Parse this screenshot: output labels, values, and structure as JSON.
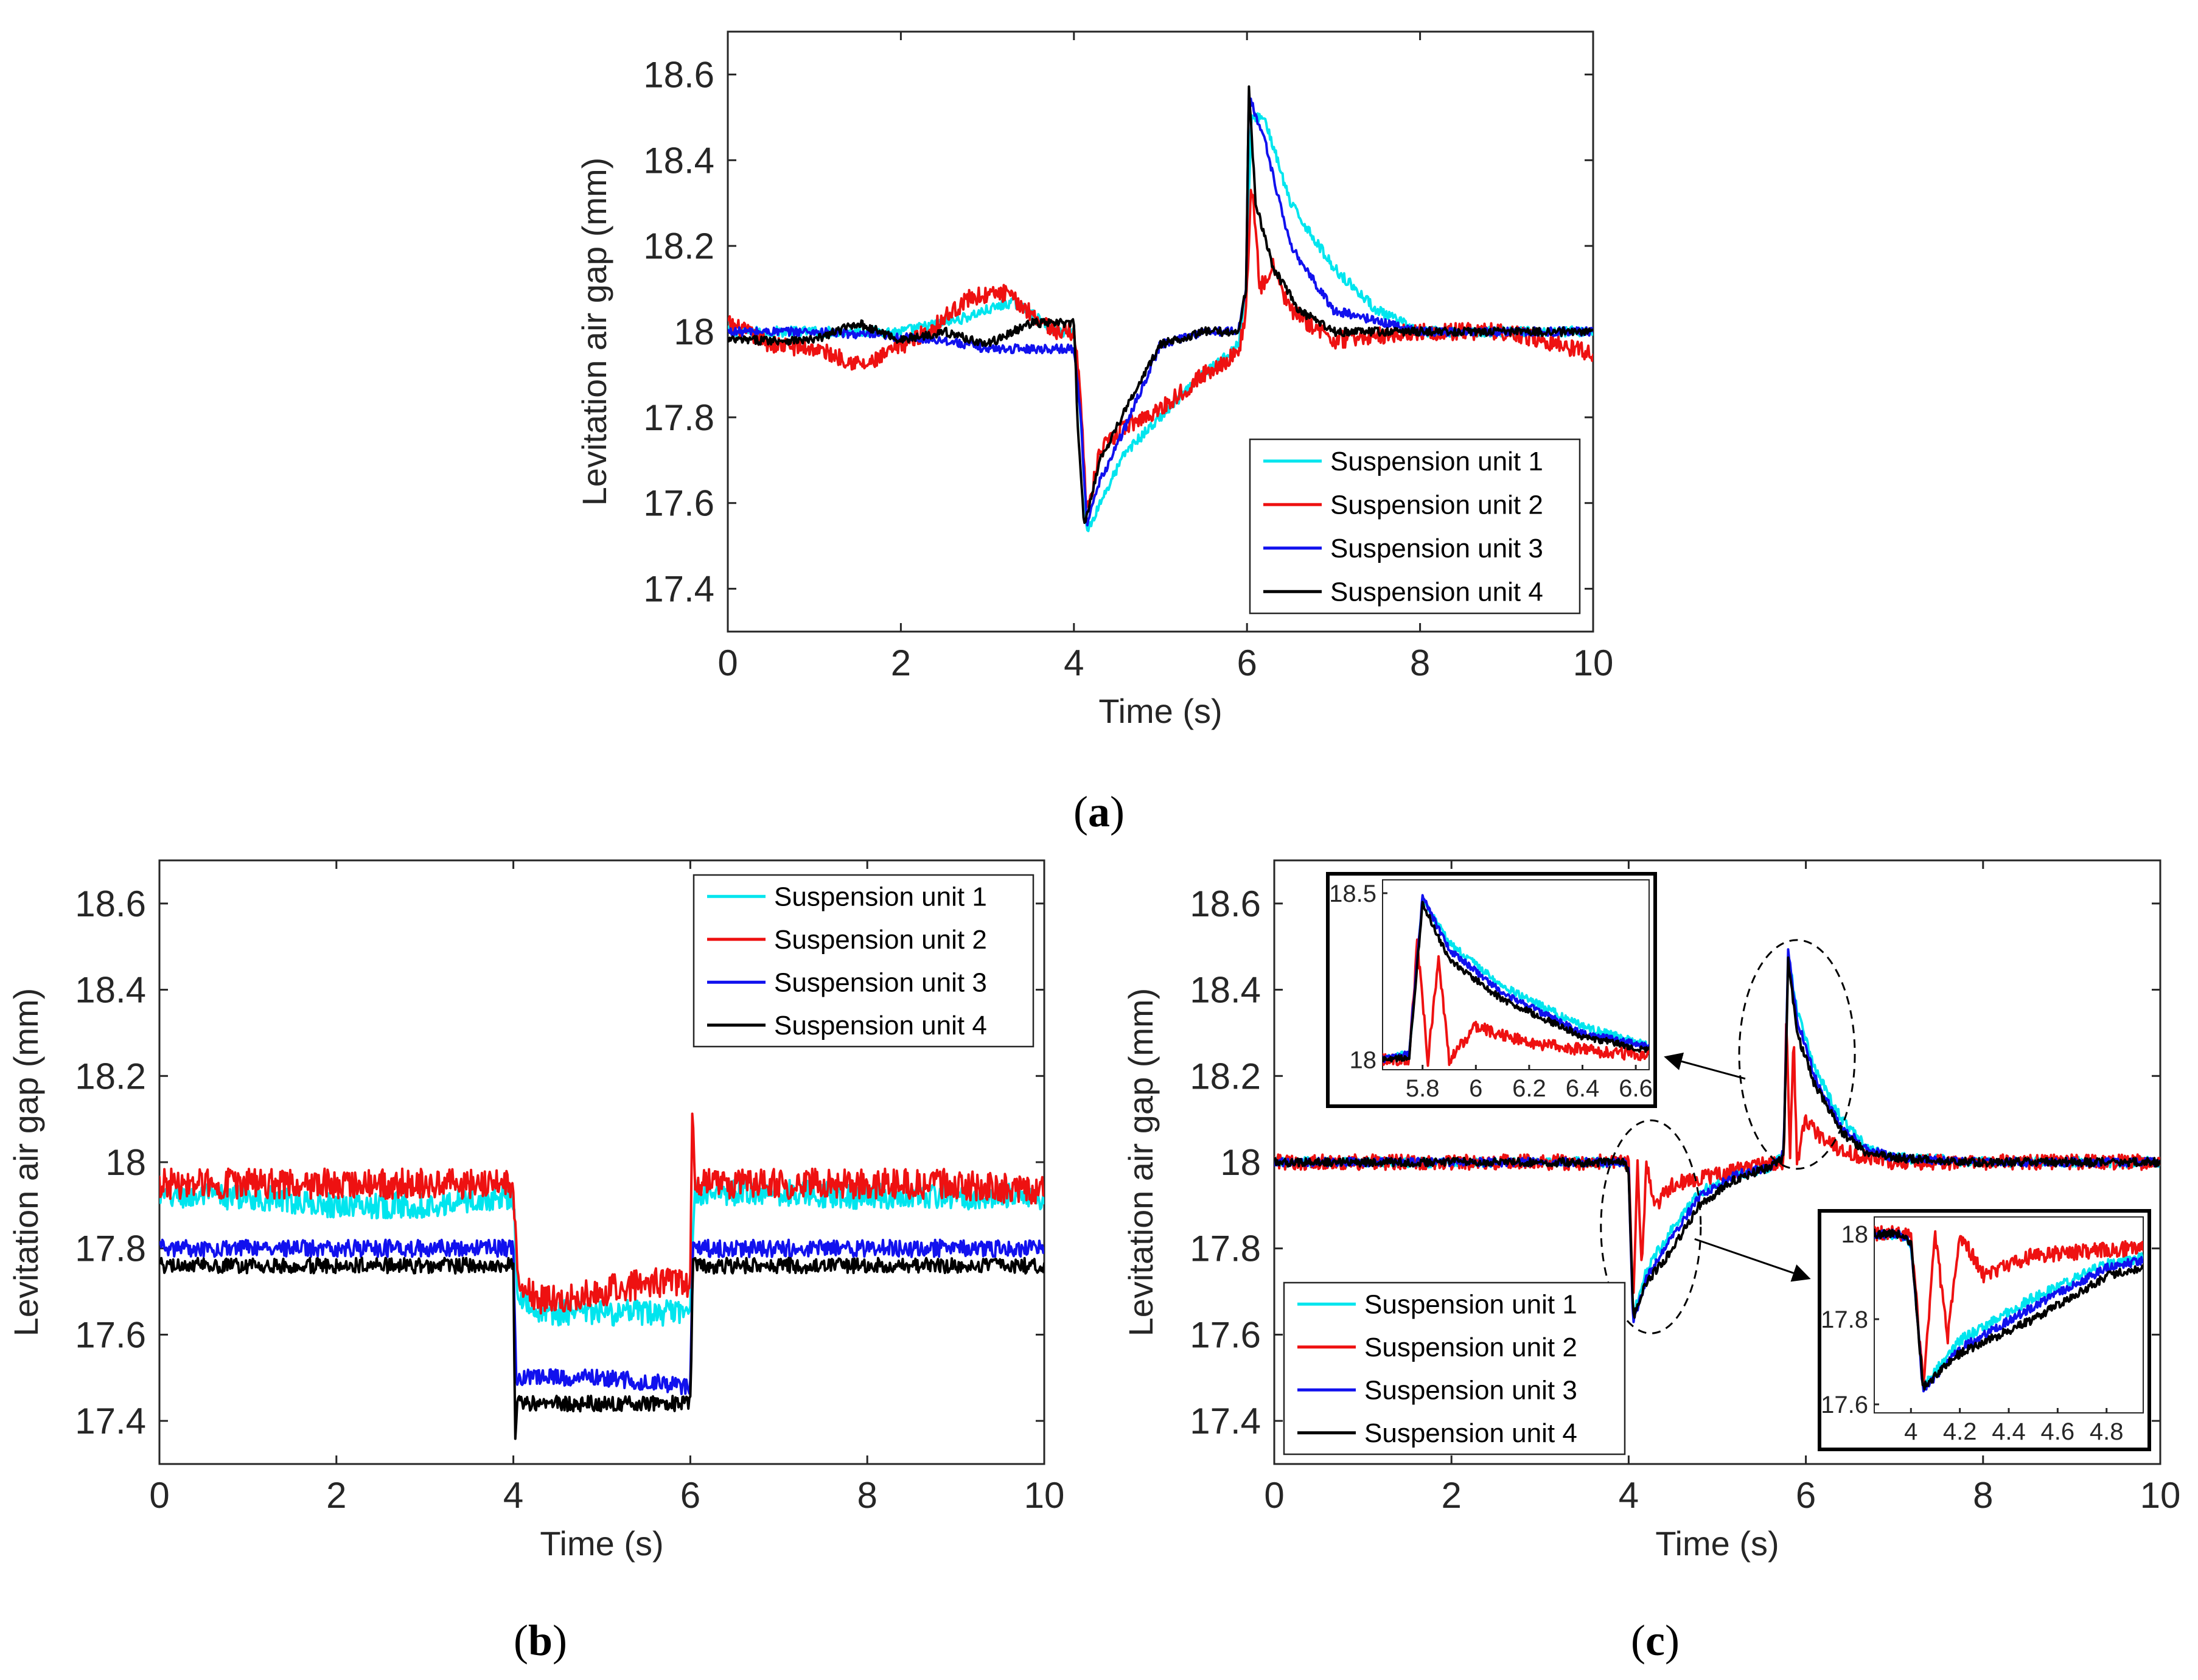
{
  "figure": {
    "panel_labels": [
      "a",
      "b",
      "c"
    ]
  },
  "colors": {
    "unit1": "#00e5ee",
    "unit2": "#ee1111",
    "unit3": "#1111ee",
    "unit4": "#000000"
  },
  "chart_data": [
    {
      "id": "a",
      "type": "line",
      "xlabel": "Time (s)",
      "ylabel": "Levitation air gap (mm)",
      "xlim": [
        0,
        10
      ],
      "ylim": [
        17.3,
        18.7
      ],
      "xticks": [
        0,
        2,
        4,
        6,
        8,
        10
      ],
      "xtick_labels": [
        "0",
        "2",
        "4",
        "6",
        "8",
        "10"
      ],
      "yticks": [
        17.4,
        17.6,
        17.8,
        18,
        18.2,
        18.4,
        18.6
      ],
      "ytick_labels": [
        "17.4",
        "17.6",
        "17.8",
        "18",
        "18.2",
        "18.4",
        "18.6"
      ],
      "legend_position": "bottom-right",
      "series": [
        {
          "name": "Suspension unit 1",
          "color_key": "unit1",
          "x": [
            0,
            1,
            2,
            2.7,
            3.3,
            3.8,
            4.0,
            4.08,
            4.15,
            4.3,
            4.6,
            5.0,
            5.5,
            5.9,
            5.99,
            6.05,
            6.2,
            6.5,
            7.0,
            7.5,
            8.0,
            9.0,
            10.0
          ],
          "values": [
            18.0,
            18.0,
            18.0,
            18.03,
            18.07,
            18.0,
            18.0,
            17.8,
            17.53,
            17.6,
            17.72,
            17.8,
            17.9,
            17.97,
            18.1,
            18.5,
            18.5,
            18.3,
            18.15,
            18.05,
            18.0,
            18.0,
            18.0
          ],
          "noise": 0.012
        },
        {
          "name": "Suspension unit 2",
          "color_key": "unit2",
          "x": [
            0,
            0.5,
            1.0,
            1.6,
            2.3,
            2.8,
            3.2,
            3.6,
            3.8,
            4.0,
            4.08,
            4.15,
            4.3,
            4.6,
            5.0,
            5.5,
            5.9,
            5.99,
            6.05,
            6.15,
            6.3,
            6.5,
            7.0,
            8.0,
            9.0,
            10.0
          ],
          "values": [
            18.02,
            17.97,
            17.96,
            17.92,
            18.0,
            18.08,
            18.09,
            18.03,
            18.0,
            18.0,
            17.85,
            17.57,
            17.72,
            17.78,
            17.82,
            17.9,
            17.95,
            18.05,
            18.35,
            18.1,
            18.15,
            18.05,
            17.98,
            18.0,
            18.0,
            17.95
          ],
          "noise": 0.02
        },
        {
          "name": "Suspension unit 3",
          "color_key": "unit3",
          "x": [
            0,
            1,
            2.5,
            3.0,
            3.8,
            4.0,
            4.08,
            4.15,
            4.3,
            4.6,
            5.0,
            5.5,
            5.9,
            5.99,
            6.02,
            6.2,
            6.5,
            7.0,
            8.0,
            9.0,
            10.0
          ],
          "values": [
            18.0,
            18.0,
            17.98,
            17.96,
            17.96,
            17.96,
            17.8,
            17.55,
            17.65,
            17.78,
            17.97,
            18.0,
            18.0,
            18.1,
            18.55,
            18.45,
            18.2,
            18.05,
            18.0,
            18.0,
            18.0
          ],
          "noise": 0.01
        },
        {
          "name": "Suspension unit 4",
          "color_key": "unit4",
          "x": [
            0,
            1,
            1.5,
            2.0,
            2.5,
            3.0,
            3.5,
            4.0,
            4.05,
            4.12,
            4.3,
            4.6,
            5.0,
            5.5,
            5.9,
            5.99,
            6.02,
            6.1,
            6.3,
            6.6,
            7.0,
            8.0,
            9.0,
            10.0
          ],
          "values": [
            17.98,
            17.98,
            18.02,
            17.98,
            18.0,
            17.97,
            18.02,
            18.02,
            17.75,
            17.55,
            17.7,
            17.82,
            17.97,
            18.0,
            18.0,
            18.1,
            18.57,
            18.3,
            18.15,
            18.05,
            18.0,
            18.0,
            18.0,
            18.0
          ],
          "noise": 0.01
        }
      ]
    },
    {
      "id": "b",
      "type": "line",
      "xlabel": "Time (s)",
      "ylabel": "Levitation air gap (mm)",
      "xlim": [
        0,
        10
      ],
      "ylim": [
        17.3,
        18.7
      ],
      "xticks": [
        0,
        2,
        4,
        6,
        8,
        10
      ],
      "xtick_labels": [
        "0",
        "2",
        "4",
        "6",
        "8",
        "10"
      ],
      "yticks": [
        17.4,
        17.6,
        17.8,
        18,
        18.2,
        18.4,
        18.6
      ],
      "ytick_labels": [
        "17.4",
        "17.6",
        "17.8",
        "18",
        "18.2",
        "18.4",
        "18.6"
      ],
      "legend_position": "top-right",
      "series": [
        {
          "name": "Suspension unit 1",
          "color_key": "unit1",
          "x": [
            0,
            1,
            2,
            3,
            4.0,
            4.05,
            4.3,
            5.0,
            5.5,
            6.0,
            6.05,
            7.0,
            8.0,
            9.0,
            10.0
          ],
          "values": [
            17.92,
            17.92,
            17.9,
            17.9,
            17.92,
            17.7,
            17.65,
            17.65,
            17.65,
            17.65,
            17.93,
            17.93,
            17.92,
            17.92,
            17.92
          ],
          "noise": 0.03
        },
        {
          "name": "Suspension unit 2",
          "color_key": "unit2",
          "x": [
            0,
            1,
            2,
            3,
            4.0,
            4.05,
            4.3,
            5.0,
            5.5,
            6.0,
            6.02,
            6.05,
            7.0,
            8.0,
            9.0,
            10.0
          ],
          "values": [
            17.95,
            17.95,
            17.95,
            17.95,
            17.95,
            17.72,
            17.68,
            17.7,
            17.72,
            17.72,
            18.15,
            17.95,
            17.95,
            17.95,
            17.95,
            17.93
          ],
          "noise": 0.035
        },
        {
          "name": "Suspension unit 3",
          "color_key": "unit3",
          "x": [
            0,
            2,
            4.0,
            4.03,
            5.0,
            6.0,
            6.03,
            8.0,
            10.0
          ],
          "values": [
            17.8,
            17.8,
            17.8,
            17.5,
            17.5,
            17.48,
            17.8,
            17.8,
            17.8
          ],
          "noise": 0.02
        },
        {
          "name": "Suspension unit 4",
          "color_key": "unit4",
          "x": [
            0,
            2,
            4.0,
            4.02,
            4.04,
            5.0,
            6.0,
            6.03,
            8.0,
            10.0
          ],
          "values": [
            17.76,
            17.76,
            17.76,
            17.36,
            17.44,
            17.44,
            17.44,
            17.76,
            17.76,
            17.76
          ],
          "noise": 0.018
        }
      ]
    },
    {
      "id": "c",
      "type": "line",
      "xlabel": "Time (s)",
      "ylabel": "Levitation air gap (mm)",
      "xlim": [
        0,
        10
      ],
      "ylim": [
        17.3,
        18.7
      ],
      "xticks": [
        0,
        2,
        4,
        6,
        8,
        10
      ],
      "xtick_labels": [
        "0",
        "2",
        "4",
        "6",
        "8",
        "10"
      ],
      "yticks": [
        17.4,
        17.6,
        17.8,
        18,
        18.2,
        18.4,
        18.6
      ],
      "ytick_labels": [
        "17.4",
        "17.6",
        "17.8",
        "18",
        "18.2",
        "18.4",
        "18.6"
      ],
      "legend_position": "bottom-left",
      "series": [
        {
          "name": "Suspension unit 1",
          "color_key": "unit1",
          "x": [
            0,
            3.95,
            4.0,
            4.05,
            4.2,
            4.5,
            4.8,
            5.2,
            5.6,
            5.75,
            5.8,
            5.9,
            6.1,
            6.4,
            6.7,
            7.0,
            8.0,
            10.0
          ],
          "values": [
            18.0,
            18.0,
            17.98,
            17.64,
            17.75,
            17.85,
            17.93,
            17.97,
            17.99,
            18.02,
            18.48,
            18.35,
            18.22,
            18.1,
            18.03,
            18.01,
            18.0,
            18.0
          ],
          "noise": 0.012
        },
        {
          "name": "Suspension unit 2",
          "color_key": "unit2",
          "x": [
            0,
            3.95,
            4.0,
            4.05,
            4.1,
            4.15,
            4.2,
            4.3,
            4.5,
            5.0,
            5.6,
            5.75,
            5.78,
            5.82,
            5.86,
            5.9,
            6.0,
            6.2,
            6.5,
            7.0,
            8.0,
            10.0
          ],
          "values": [
            18.0,
            18.0,
            18.0,
            17.65,
            18.0,
            17.75,
            18.0,
            17.9,
            17.95,
            17.97,
            18.0,
            18.0,
            18.35,
            18.0,
            18.3,
            18.0,
            18.1,
            18.05,
            18.02,
            18.0,
            18.0,
            18.0
          ],
          "noise": 0.018
        },
        {
          "name": "Suspension unit 3",
          "color_key": "unit3",
          "x": [
            0,
            3.95,
            4.0,
            4.05,
            4.2,
            4.5,
            4.8,
            5.2,
            5.6,
            5.75,
            5.8,
            5.9,
            6.1,
            6.4,
            6.7,
            7.0,
            8.0,
            10.0
          ],
          "values": [
            18.0,
            18.0,
            17.98,
            17.63,
            17.73,
            17.83,
            17.92,
            17.97,
            17.99,
            18.02,
            18.49,
            18.33,
            18.2,
            18.08,
            18.03,
            18.01,
            18.0,
            18.0
          ],
          "noise": 0.01
        },
        {
          "name": "Suspension unit 4",
          "color_key": "unit4",
          "x": [
            0,
            3.95,
            4.0,
            4.05,
            4.2,
            4.5,
            4.8,
            5.2,
            5.6,
            5.75,
            5.8,
            5.9,
            6.1,
            6.4,
            6.7,
            7.0,
            8.0,
            10.0
          ],
          "values": [
            18.0,
            18.0,
            17.98,
            17.64,
            17.72,
            17.8,
            17.9,
            17.96,
            17.99,
            18.01,
            18.47,
            18.3,
            18.18,
            18.07,
            18.02,
            18.01,
            18.0,
            18.0
          ],
          "noise": 0.01
        }
      ],
      "insets": [
        {
          "id": "c-inset-top",
          "xlim": [
            5.65,
            6.65
          ],
          "ylim": [
            17.97,
            18.54
          ],
          "xticks": [
            5.8,
            6,
            6.2,
            6.4,
            6.6
          ],
          "xtick_labels": [
            "5.8",
            "6",
            "6.2",
            "6.4",
            "6.6"
          ],
          "yticks": [
            18,
            18.5
          ],
          "ytick_labels": [
            "18",
            "18.5"
          ]
        },
        {
          "id": "c-inset-bottom",
          "xlim": [
            3.85,
            4.95
          ],
          "ylim": [
            17.58,
            18.04
          ],
          "xticks": [
            4,
            4.2,
            4.4,
            4.6,
            4.8
          ],
          "xtick_labels": [
            "4",
            "4.2",
            "4.4",
            "4.6",
            "4.8"
          ],
          "yticks": [
            17.6,
            17.8,
            18
          ],
          "ytick_labels": [
            "17.6",
            "17.8",
            "18"
          ]
        }
      ]
    }
  ]
}
